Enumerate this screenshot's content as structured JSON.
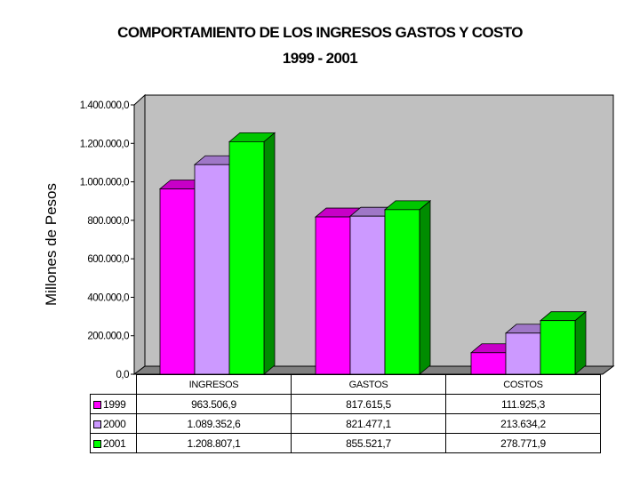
{
  "chart_data": {
    "type": "bar",
    "title": "COMPORTAMIENTO DE LOS INGRESOS GASTOS Y COSTO",
    "subtitle": "1999 - 2001",
    "ylabel": "Millones de Pesos",
    "xlabel": "",
    "ylim": [
      0,
      1400000
    ],
    "yticks": [
      0,
      200000,
      400000,
      600000,
      800000,
      1000000,
      1200000,
      1400000
    ],
    "ytick_labels": [
      "0,0",
      "200.000,0",
      "400.000,0",
      "600.000,0",
      "800.000,0",
      "1.000.000,0",
      "1.200.000,0",
      "1.400.000,0"
    ],
    "categories": [
      "INGRESOS",
      "GASTOS",
      "COSTOS"
    ],
    "series": [
      {
        "name": "1999",
        "values": [
          963506.9,
          817615.5,
          111925.3
        ],
        "labels": [
          "963.506,9",
          "817.615,5",
          "111.925,3"
        ],
        "color": "#ff00ff"
      },
      {
        "name": "2000",
        "values": [
          1089352.6,
          821477.1,
          213634.2
        ],
        "labels": [
          "1.089.352,6",
          "821.477,1",
          "213.634,2"
        ],
        "color": "#cc99ff"
      },
      {
        "name": "2001",
        "values": [
          1208807.1,
          855521.7,
          278771.9
        ],
        "labels": [
          "1.208.807,1",
          "855.521,7",
          "278.771,9"
        ],
        "color": "#00ff00"
      }
    ],
    "legend": "data-table",
    "grid": false,
    "colors": {
      "wall": "#c0c0c0",
      "floor": "#808080"
    }
  }
}
